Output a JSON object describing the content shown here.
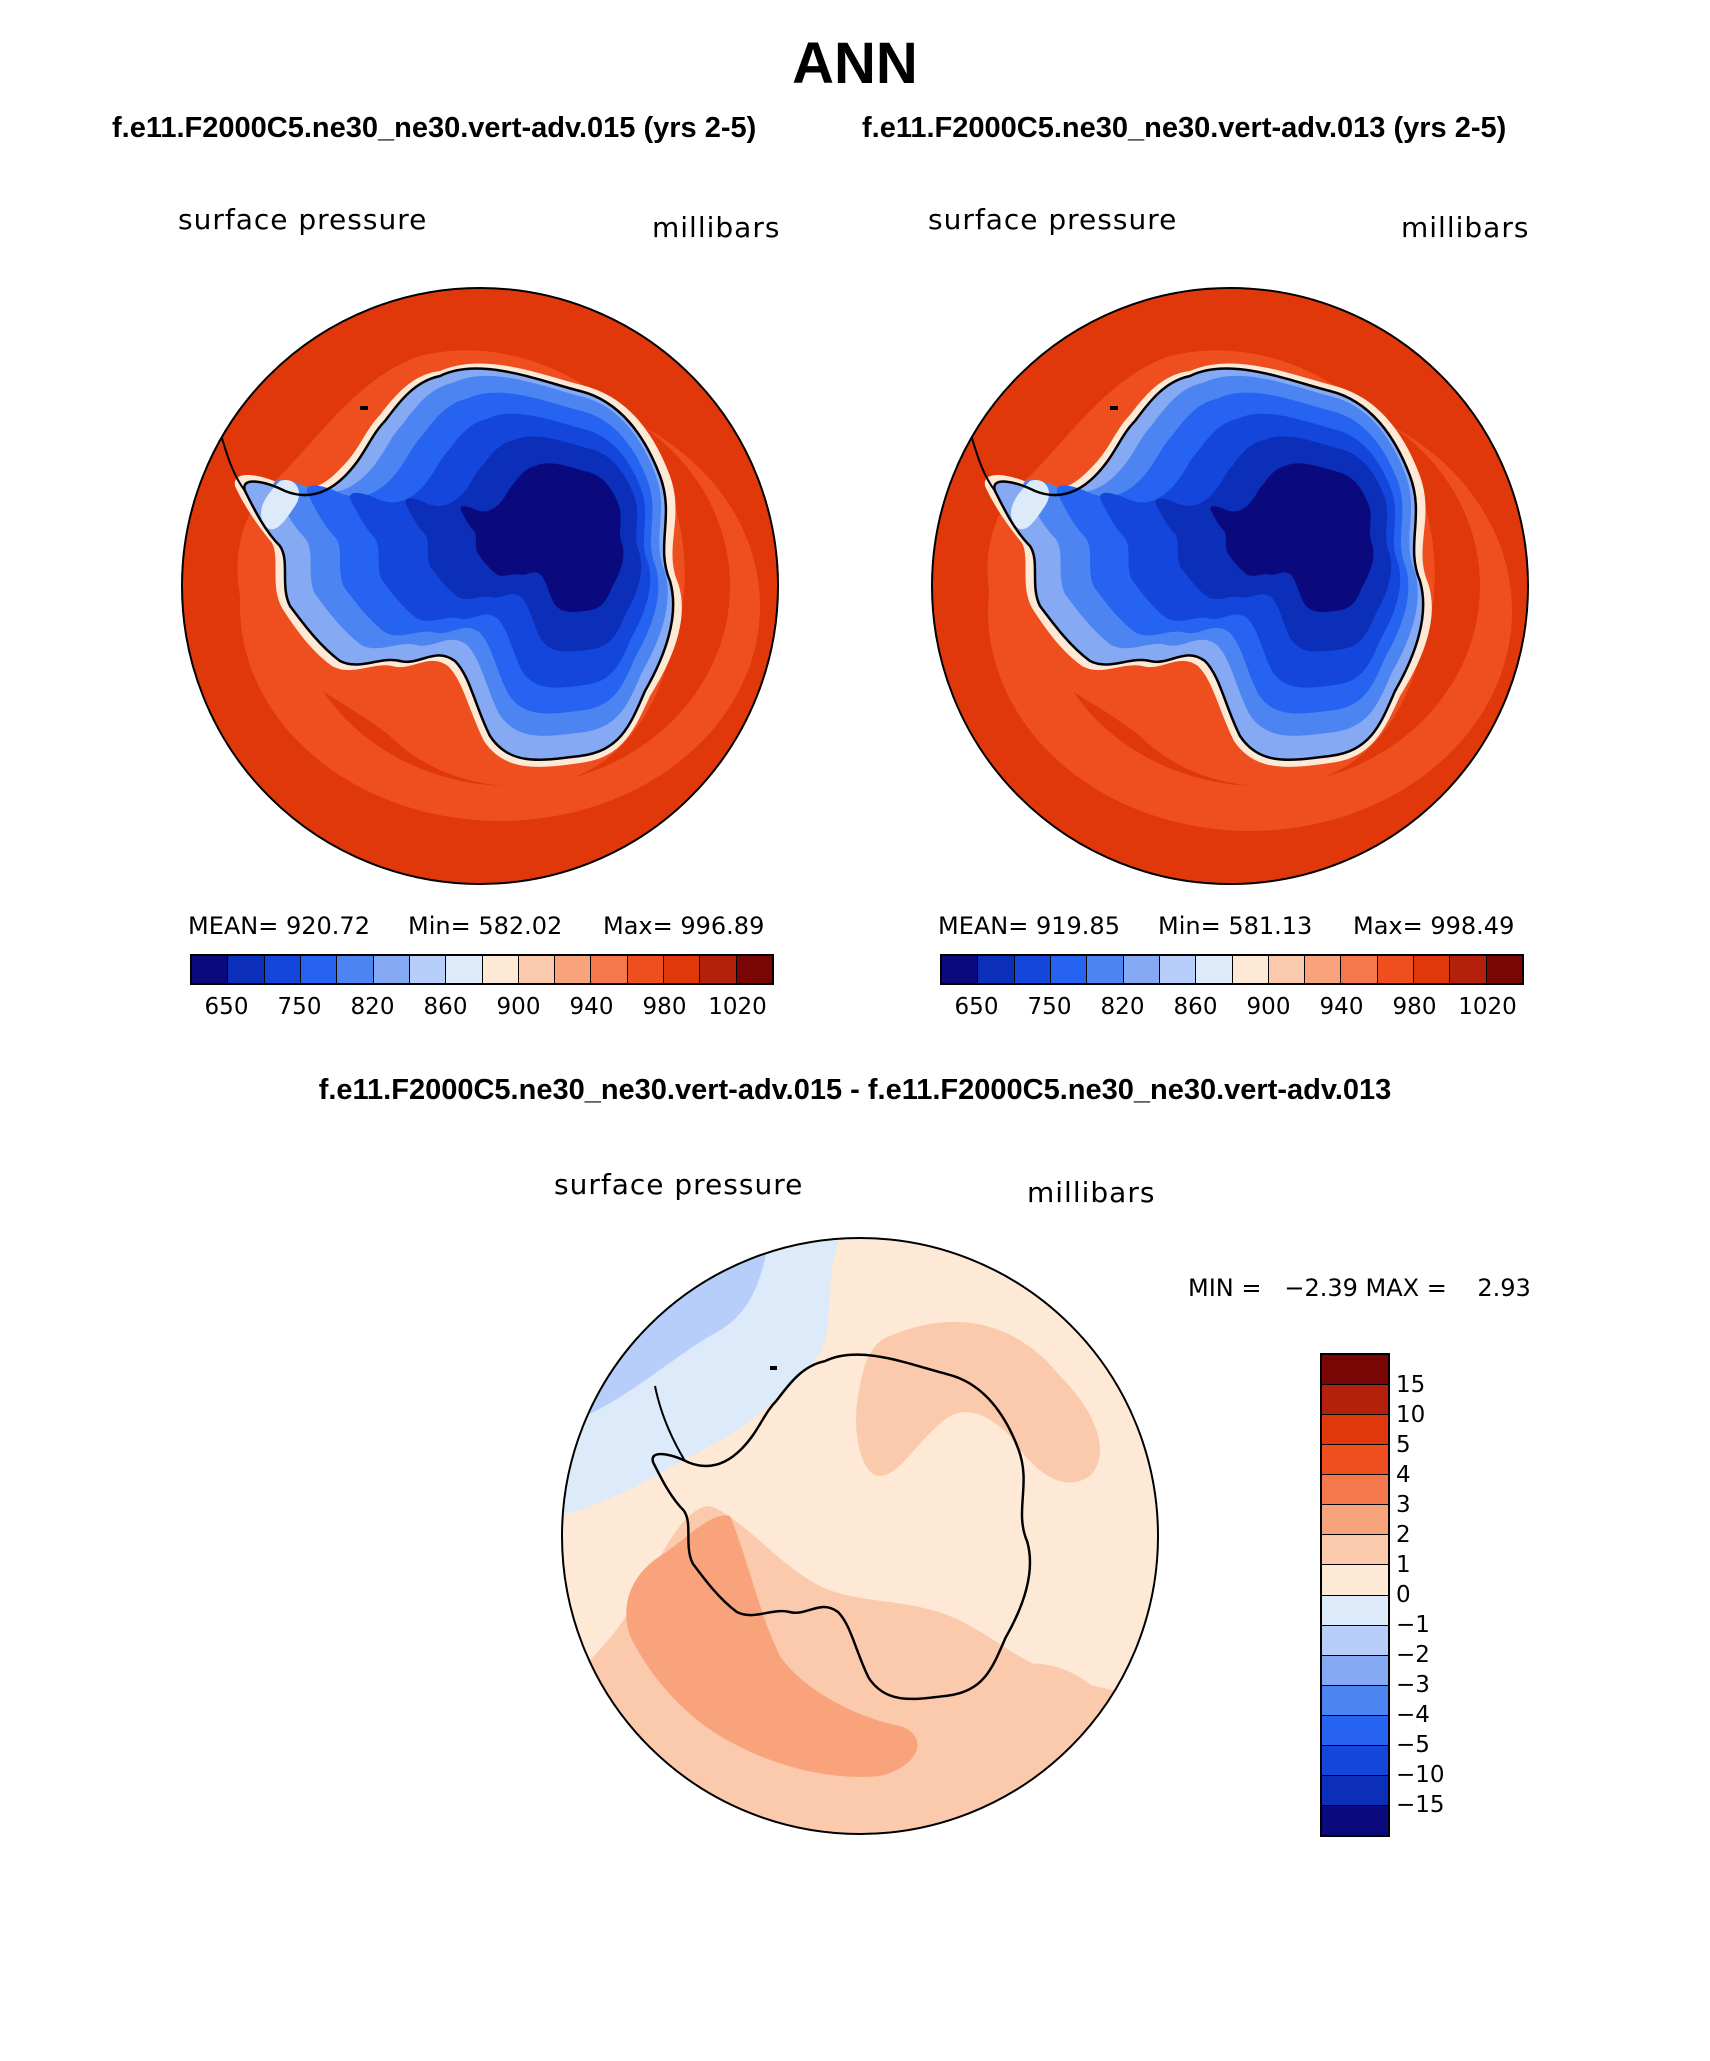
{
  "title": "ANN",
  "panels": [
    {
      "case_title": "f.e11.F2000C5.ne30_ne30.vert-adv.015 (yrs 2-5)",
      "left_label": "surface pressure",
      "right_label": "millibars",
      "stats": {
        "mean": "MEAN= 920.72",
        "min": "Min= 582.02",
        "max": "Max= 996.89"
      }
    },
    {
      "case_title": "f.e11.F2000C5.ne30_ne30.vert-adv.013 (yrs 2-5)",
      "left_label": "surface pressure",
      "right_label": "millibars",
      "stats": {
        "mean": "MEAN= 919.85",
        "min": "Min= 581.13",
        "max": "Max= 998.49"
      }
    }
  ],
  "colorbar_levels": [
    "650",
    "750",
    "820",
    "860",
    "900",
    "940",
    "980",
    "1020"
  ],
  "colorbar_colors": [
    "#0a0a7e",
    "#0b2fb8",
    "#1546dc",
    "#2563f0",
    "#4c85f2",
    "#86a9f3",
    "#b7cefa",
    "#dceaf9",
    "#fde9d6",
    "#fbc9ac",
    "#f8a37c",
    "#f5784c",
    "#ef4f1f",
    "#e0380a",
    "#b3200c",
    "#7a0505"
  ],
  "difference": {
    "title": "f.e11.F2000C5.ne30_ne30.vert-adv.015 - f.e11.F2000C5.ne30_ne30.vert-adv.013",
    "left_label": "surface pressure",
    "right_label": "millibars",
    "minmax": "MIN =   −2.39 MAX =    2.93",
    "levels": [
      "15",
      "10",
      "5",
      "4",
      "3",
      "2",
      "1",
      "0",
      "−1",
      "−2",
      "−3",
      "−4",
      "−5",
      "−10",
      "−15"
    ],
    "colors": [
      "#7a0505",
      "#b3200c",
      "#e0380a",
      "#ef4f1f",
      "#f5784c",
      "#f8a37c",
      "#fbc9ac",
      "#fde9d6",
      "#dceaf9",
      "#b7cefa",
      "#86a9f3",
      "#4c85f2",
      "#2563f0",
      "#1546dc",
      "#0b2fb8",
      "#0a0a7e"
    ]
  }
}
